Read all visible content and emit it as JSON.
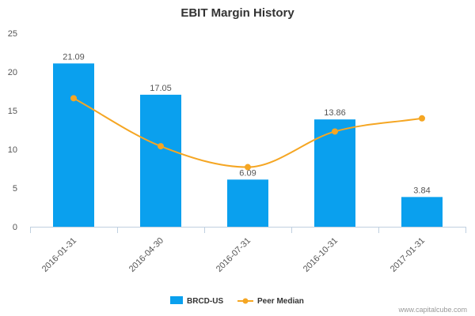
{
  "chart_data": {
    "type": "bar",
    "title": "EBIT Margin History",
    "xlabel": "",
    "ylabel": "",
    "categories": [
      "2016-01-31",
      "2016-04-30",
      "2016-07-31",
      "2016-10-31",
      "2017-01-31"
    ],
    "ylim": [
      0,
      25
    ],
    "yticks": [
      0,
      5,
      10,
      15,
      20,
      25
    ],
    "grid": false,
    "legend_position": "bottom",
    "series": [
      {
        "name": "BRCD-US",
        "type": "bar",
        "color": "#0aa0ee",
        "values": [
          21.09,
          17.05,
          6.09,
          13.86,
          3.84
        ],
        "labels": [
          "21.09",
          "17.05",
          "6.09",
          "13.86",
          "3.84"
        ]
      },
      {
        "name": "Peer Median",
        "type": "line",
        "smooth": true,
        "color": "#f5a623",
        "values": [
          16.6,
          10.4,
          7.7,
          12.3,
          14.0
        ]
      }
    ]
  },
  "credit": "www.capitalcube.com"
}
